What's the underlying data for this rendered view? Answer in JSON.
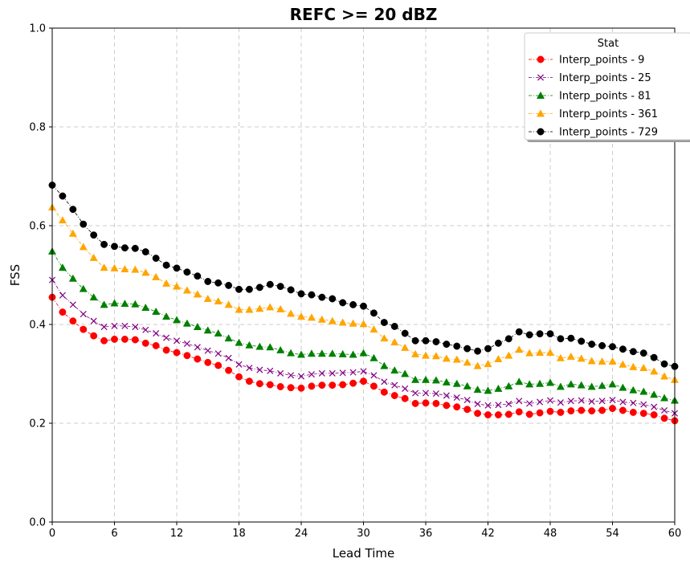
{
  "chart_data": {
    "type": "line",
    "title": "REFC >= 20 dBZ",
    "xlabel": "Lead Time",
    "ylabel": "FSS",
    "xlim": [
      0,
      60
    ],
    "ylim": [
      0,
      1.0
    ],
    "xticks": [
      0,
      6,
      12,
      18,
      24,
      30,
      36,
      42,
      48,
      54,
      60
    ],
    "yticks": [
      0.0,
      0.2,
      0.4,
      0.6,
      0.8,
      1.0
    ],
    "xtick_labels": [
      "0",
      "6",
      "12",
      "18",
      "24",
      "30",
      "36",
      "42",
      "48",
      "54",
      "60"
    ],
    "ytick_labels": [
      "0.0",
      "0.2",
      "0.4",
      "0.6",
      "0.8",
      "1.0"
    ],
    "grid": true,
    "legend_title": "Stat",
    "legend_position": "top-right",
    "x": [
      0,
      1,
      2,
      3,
      4,
      5,
      6,
      7,
      8,
      9,
      10,
      11,
      12,
      13,
      14,
      15,
      16,
      17,
      18,
      19,
      20,
      21,
      22,
      23,
      24,
      25,
      26,
      27,
      28,
      29,
      30,
      31,
      32,
      33,
      34,
      35,
      36,
      37,
      38,
      39,
      40,
      41,
      42,
      43,
      44,
      45,
      46,
      47,
      48,
      49,
      50,
      51,
      52,
      53,
      54,
      55,
      56,
      57,
      58,
      59,
      60
    ],
    "series": [
      {
        "name": "Interp_points - 9",
        "color": "#ff0000",
        "marker": "circle",
        "values": [
          0.455,
          0.425,
          0.407,
          0.39,
          0.377,
          0.367,
          0.37,
          0.37,
          0.369,
          0.362,
          0.357,
          0.348,
          0.343,
          0.337,
          0.33,
          0.323,
          0.317,
          0.307,
          0.294,
          0.285,
          0.28,
          0.278,
          0.274,
          0.272,
          0.271,
          0.275,
          0.277,
          0.277,
          0.278,
          0.281,
          0.285,
          0.275,
          0.263,
          0.256,
          0.25,
          0.24,
          0.241,
          0.24,
          0.236,
          0.233,
          0.228,
          0.22,
          0.217,
          0.217,
          0.218,
          0.223,
          0.218,
          0.221,
          0.224,
          0.222,
          0.225,
          0.226,
          0.225,
          0.226,
          0.23,
          0.226,
          0.222,
          0.22,
          0.217,
          0.21,
          0.205
        ]
      },
      {
        "name": "Interp_points - 25",
        "color": "#800080",
        "marker": "x",
        "values": [
          0.49,
          0.459,
          0.44,
          0.421,
          0.407,
          0.395,
          0.397,
          0.397,
          0.395,
          0.389,
          0.382,
          0.373,
          0.367,
          0.361,
          0.354,
          0.347,
          0.341,
          0.332,
          0.319,
          0.312,
          0.308,
          0.306,
          0.301,
          0.297,
          0.295,
          0.299,
          0.301,
          0.301,
          0.302,
          0.303,
          0.305,
          0.297,
          0.284,
          0.277,
          0.27,
          0.261,
          0.261,
          0.26,
          0.256,
          0.252,
          0.247,
          0.239,
          0.236,
          0.237,
          0.239,
          0.245,
          0.24,
          0.243,
          0.246,
          0.242,
          0.245,
          0.246,
          0.244,
          0.245,
          0.247,
          0.243,
          0.241,
          0.238,
          0.233,
          0.226,
          0.22
        ]
      },
      {
        "name": "Interp_points - 81",
        "color": "#008000",
        "marker": "triangle",
        "values": [
          0.548,
          0.515,
          0.493,
          0.472,
          0.455,
          0.44,
          0.443,
          0.442,
          0.441,
          0.434,
          0.426,
          0.416,
          0.409,
          0.402,
          0.395,
          0.388,
          0.382,
          0.372,
          0.363,
          0.358,
          0.355,
          0.354,
          0.348,
          0.342,
          0.339,
          0.341,
          0.341,
          0.341,
          0.34,
          0.339,
          0.342,
          0.332,
          0.316,
          0.307,
          0.3,
          0.288,
          0.288,
          0.287,
          0.283,
          0.28,
          0.275,
          0.268,
          0.266,
          0.27,
          0.275,
          0.284,
          0.279,
          0.28,
          0.282,
          0.274,
          0.279,
          0.277,
          0.274,
          0.276,
          0.279,
          0.272,
          0.267,
          0.264,
          0.258,
          0.251,
          0.246
        ]
      },
      {
        "name": "Interp_points - 361",
        "color": "#ffa500",
        "marker": "triangle",
        "values": [
          0.637,
          0.611,
          0.584,
          0.557,
          0.535,
          0.515,
          0.514,
          0.512,
          0.511,
          0.505,
          0.496,
          0.483,
          0.477,
          0.469,
          0.461,
          0.452,
          0.447,
          0.44,
          0.43,
          0.43,
          0.432,
          0.435,
          0.431,
          0.422,
          0.416,
          0.414,
          0.41,
          0.407,
          0.404,
          0.402,
          0.401,
          0.39,
          0.372,
          0.364,
          0.353,
          0.34,
          0.337,
          0.336,
          0.331,
          0.329,
          0.323,
          0.316,
          0.32,
          0.33,
          0.337,
          0.349,
          0.342,
          0.343,
          0.343,
          0.332,
          0.335,
          0.331,
          0.326,
          0.325,
          0.325,
          0.319,
          0.314,
          0.312,
          0.305,
          0.295,
          0.288
        ]
      },
      {
        "name": "Interp_points - 729",
        "color": "#000000",
        "marker": "circle",
        "values": [
          0.682,
          0.66,
          0.633,
          0.603,
          0.581,
          0.562,
          0.558,
          0.555,
          0.554,
          0.547,
          0.534,
          0.52,
          0.514,
          0.506,
          0.498,
          0.487,
          0.484,
          0.479,
          0.471,
          0.471,
          0.475,
          0.481,
          0.477,
          0.47,
          0.462,
          0.46,
          0.455,
          0.452,
          0.444,
          0.44,
          0.437,
          0.423,
          0.404,
          0.396,
          0.382,
          0.367,
          0.367,
          0.365,
          0.36,
          0.356,
          0.351,
          0.346,
          0.351,
          0.362,
          0.371,
          0.385,
          0.379,
          0.381,
          0.381,
          0.371,
          0.372,
          0.366,
          0.36,
          0.357,
          0.355,
          0.35,
          0.345,
          0.342,
          0.333,
          0.32,
          0.315
        ]
      }
    ]
  }
}
